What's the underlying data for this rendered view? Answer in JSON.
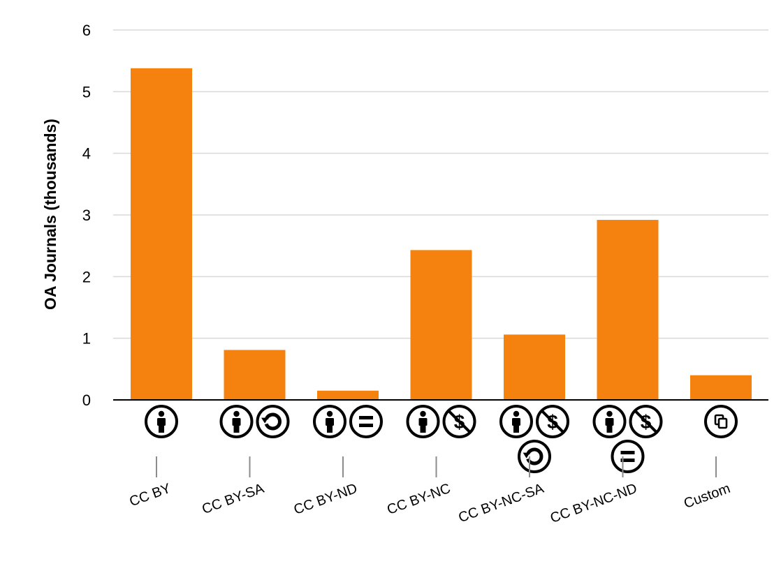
{
  "chart_data": {
    "type": "bar",
    "title": "",
    "xlabel": "",
    "ylabel": "OA Journals (thousands)",
    "ylim": [
      0,
      6
    ],
    "yticks": [
      0,
      1,
      2,
      3,
      4,
      5,
      6
    ],
    "grid": true,
    "legend": "none",
    "bar_color": "#f5820f",
    "categories": [
      "CC BY",
      "CC BY-SA",
      "CC BY-ND",
      "CC BY-NC",
      "CC BY-NC-SA",
      "CC BY-NC-ND",
      "Custom"
    ],
    "values": [
      5.38,
      0.81,
      0.15,
      2.43,
      1.06,
      2.92,
      0.4
    ],
    "category_icons": [
      [
        "by-icon"
      ],
      [
        "by-icon",
        "sa-icon"
      ],
      [
        "by-icon",
        "nd-icon"
      ],
      [
        "by-icon",
        "nc-icon"
      ],
      [
        "by-icon",
        "nc-icon",
        "sa-icon"
      ],
      [
        "by-icon",
        "nc-icon",
        "nd-icon"
      ],
      [
        "custom-copy-icon"
      ]
    ]
  }
}
